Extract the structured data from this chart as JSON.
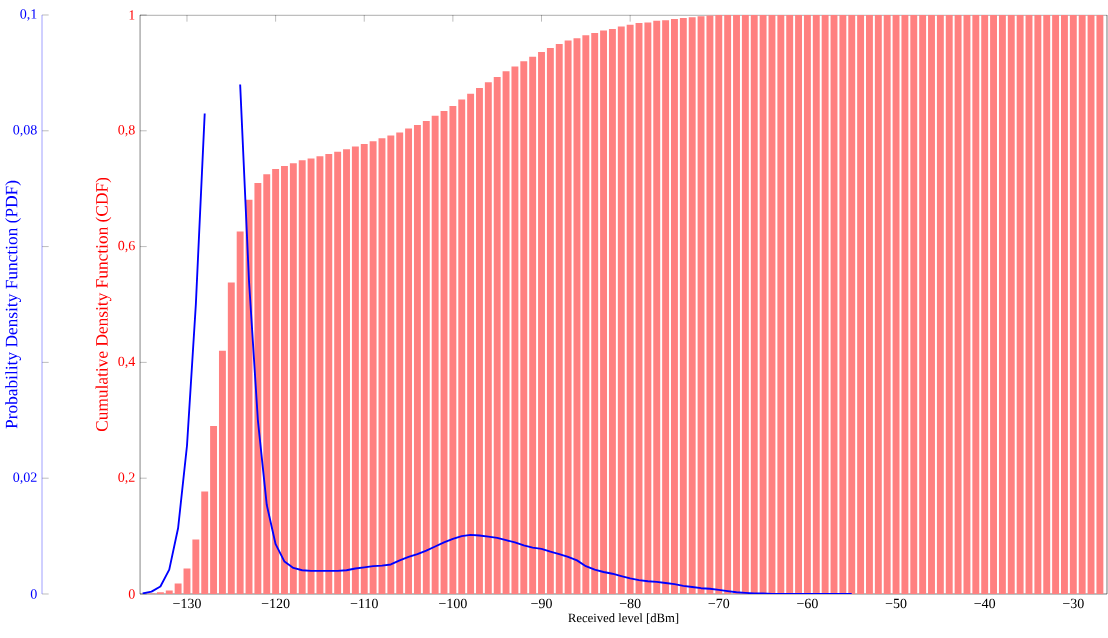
{
  "chart_data": {
    "type": "bar",
    "xlabel": "Received level [dBm]",
    "ylabel": "Cumulative Density Function (CDF)",
    "y2label": "Probability Density Function (PDF)",
    "xlim": [
      -135.3,
      -26.2
    ],
    "xticks": [
      {
        "value": -130,
        "label": "−130"
      },
      {
        "value": -120,
        "label": "−120"
      },
      {
        "value": -110,
        "label": "−110"
      },
      {
        "value": -100,
        "label": "−100"
      },
      {
        "value": -90,
        "label": "−90"
      },
      {
        "value": -80,
        "label": "−80"
      },
      {
        "value": -70,
        "label": "−70"
      },
      {
        "value": -60,
        "label": "−60"
      },
      {
        "value": -50,
        "label": "−50"
      },
      {
        "value": -40,
        "label": "−40"
      },
      {
        "value": -30,
        "label": "−30"
      }
    ],
    "ylim": [
      0,
      1
    ],
    "yticks": [
      0,
      {
        "value": 0.2,
        "label": "0,2"
      },
      {
        "value": 0.4,
        "label": "0,4"
      },
      {
        "value": 0.6,
        "label": "0,6"
      },
      {
        "value": 0.8,
        "label": "0,8"
      },
      1
    ],
    "y2lim": [
      0,
      0.1
    ],
    "y2ticks": [
      0,
      {
        "value": 0.02,
        "label": "0,02"
      },
      {
        "value": 0.04,
        "label": null
      },
      {
        "value": 0.06,
        "label": null
      },
      {
        "value": 0.08,
        "label": "0,08"
      },
      {
        "value": 0.1,
        "label": "0,1"
      }
    ],
    "series": [
      {
        "color": "#ff8080",
        "x": [
          -134,
          -133,
          -132,
          -131,
          -130,
          -129,
          -128,
          -127,
          -126,
          -125,
          -124,
          -123,
          -122,
          -121,
          -120,
          -119,
          -118,
          -117,
          -116,
          -115,
          -114,
          -113,
          -112,
          -111,
          -110,
          -109,
          -108,
          -107,
          -106,
          -105,
          -104,
          -103,
          -102,
          -101,
          -100,
          -99,
          -98,
          -97,
          -96,
          -95,
          -94,
          -93,
          -92,
          -91,
          -90,
          -89,
          -88,
          -87,
          -86,
          -85,
          -84,
          -83,
          -82,
          -81,
          -80,
          -79,
          -78,
          -77,
          -76,
          -75,
          -74,
          -73,
          -72,
          -71,
          -70,
          -69,
          -68,
          -67,
          -66,
          -65,
          -64,
          -63,
          -62,
          -61,
          -60,
          -59,
          -58,
          -57,
          -56,
          -55,
          -54,
          -53,
          -52,
          -51,
          -50,
          -49,
          -48,
          -47,
          -46,
          -45,
          -44,
          -43,
          -42,
          -41,
          -40,
          -39,
          -38,
          -37,
          -36,
          -35,
          -34,
          -33,
          -32,
          -31,
          -30,
          -29,
          -28,
          -27
        ],
        "values": [
          0.001,
          0.003,
          0.006,
          0.018,
          0.044,
          0.094,
          0.177,
          0.29,
          0.42,
          0.538,
          0.626,
          0.681,
          0.71,
          0.725,
          0.734,
          0.739,
          0.744,
          0.749,
          0.752,
          0.756,
          0.76,
          0.764,
          0.768,
          0.773,
          0.777,
          0.782,
          0.787,
          0.792,
          0.797,
          0.804,
          0.81,
          0.817,
          0.826,
          0.834,
          0.843,
          0.854,
          0.864,
          0.874,
          0.884,
          0.893,
          0.903,
          0.911,
          0.92,
          0.928,
          0.936,
          0.943,
          0.95,
          0.956,
          0.96,
          0.965,
          0.969,
          0.973,
          0.976,
          0.98,
          0.983,
          0.986,
          0.987,
          0.99,
          0.991,
          0.993,
          0.995,
          0.996,
          0.998,
          0.999,
          1,
          1,
          1,
          1,
          1,
          1,
          1,
          1,
          1,
          1,
          1,
          1,
          1,
          1,
          1,
          1,
          1,
          1,
          1,
          1,
          1,
          1,
          1,
          1,
          1,
          1,
          1,
          1,
          1,
          1,
          1,
          1,
          1,
          1,
          1,
          1,
          1,
          1,
          1,
          1,
          1,
          1,
          1,
          1
        ]
      },
      {
        "type": "line",
        "color": "#0000ff",
        "axis": "y2",
        "x": [
          -135,
          -134,
          -133,
          -132,
          -131,
          -130,
          -129,
          -128,
          -127,
          -126,
          -125,
          -124,
          -123,
          -122,
          -121,
          -120,
          -119,
          -118,
          -117,
          -116,
          -115,
          -114,
          -113,
          -112,
          -111,
          -110,
          -109,
          -108,
          -107,
          -106,
          -105,
          -104,
          -103,
          -102,
          -101,
          -100,
          -99,
          -98,
          -97,
          -96,
          -95,
          -94,
          -93,
          -92,
          -91,
          -90,
          -89,
          -88,
          -87,
          -86,
          -85,
          -84,
          -83,
          -82,
          -81,
          -80,
          -79,
          -78,
          -77,
          -76,
          -75,
          -74,
          -73,
          -72,
          -71,
          -70,
          -69,
          -68,
          -67,
          -66,
          -65,
          -64,
          -63,
          -62,
          -61,
          -60,
          -59,
          -58,
          -57,
          -56,
          -55
        ],
        "values": [
          0.0001,
          0.0004,
          0.0013,
          0.0042,
          0.0114,
          0.0256,
          0.05,
          0.083,
          null,
          null,
          null,
          0.088,
          0.054,
          0.03,
          0.0154,
          0.0086,
          0.0056,
          0.0045,
          0.0041,
          0.004,
          0.004,
          0.004,
          0.004,
          0.0041,
          0.0044,
          0.0046,
          0.0048,
          0.0049,
          0.0051,
          0.0058,
          0.0064,
          0.0069,
          0.0075,
          0.0082,
          0.0089,
          0.0095,
          0.01,
          0.0102,
          0.0101,
          0.0099,
          0.0097,
          0.0093,
          0.0089,
          0.0084,
          0.008,
          0.0078,
          0.0073,
          0.0069,
          0.0064,
          0.0058,
          0.0048,
          0.0042,
          0.0038,
          0.0035,
          0.0031,
          0.0027,
          0.0024,
          0.0022,
          0.0021,
          0.0019,
          0.0017,
          0.0014,
          0.0012,
          0.001,
          0.0009,
          0.0007,
          0.0005,
          0.0003,
          0.0002,
          0.0001,
          0.0001,
          0,
          0,
          0,
          0,
          0,
          0,
          0,
          0,
          0,
          0
        ]
      }
    ]
  }
}
